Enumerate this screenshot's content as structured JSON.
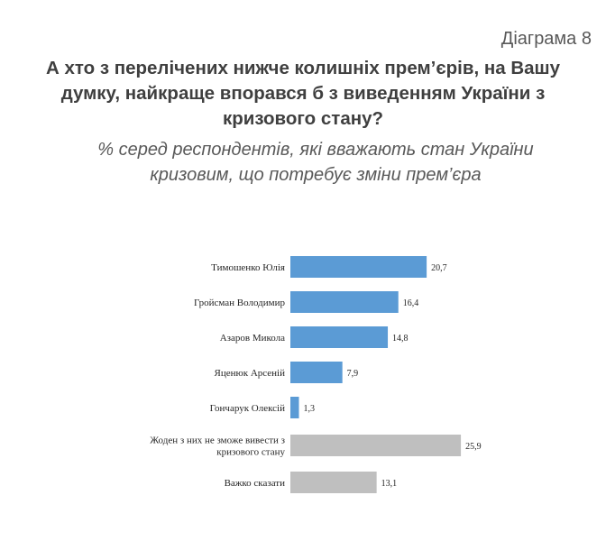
{
  "header": {
    "figure_label": "Діаграма 8",
    "title": "А хто з перелічених нижче колишніх прем’єрів, на Вашу думку, найкраще впорався б з виведенням України з кризового стану?",
    "subtitle": "% серед респондентів, які вважають стан України кризовим, що потребує зміни прем’єра"
  },
  "colors": {
    "blue_bar": "#5b9bd5",
    "gray_bar": "#bfbfbf"
  },
  "chart_data": {
    "type": "bar",
    "orientation": "horizontal",
    "categories": [
      "Тимошенко Юлія",
      "Гройсман Володимир",
      "Азаров Микола",
      "Яценюк Арсеній",
      "Гончарук Олексій",
      "Жоден з них не зможе вивести з кризового стану",
      "Важко сказати"
    ],
    "values": [
      20.7,
      16.4,
      14.8,
      7.9,
      1.3,
      25.9,
      13.1
    ],
    "value_labels": [
      "20,7",
      "16,4",
      "14,8",
      "7,9",
      "1,3",
      "25,9",
      "13,1"
    ],
    "bar_colors": [
      "blue_bar",
      "blue_bar",
      "blue_bar",
      "blue_bar",
      "blue_bar",
      "gray_bar",
      "gray_bar"
    ],
    "xlim": [
      0,
      28
    ],
    "grid": false,
    "legend": "none"
  }
}
